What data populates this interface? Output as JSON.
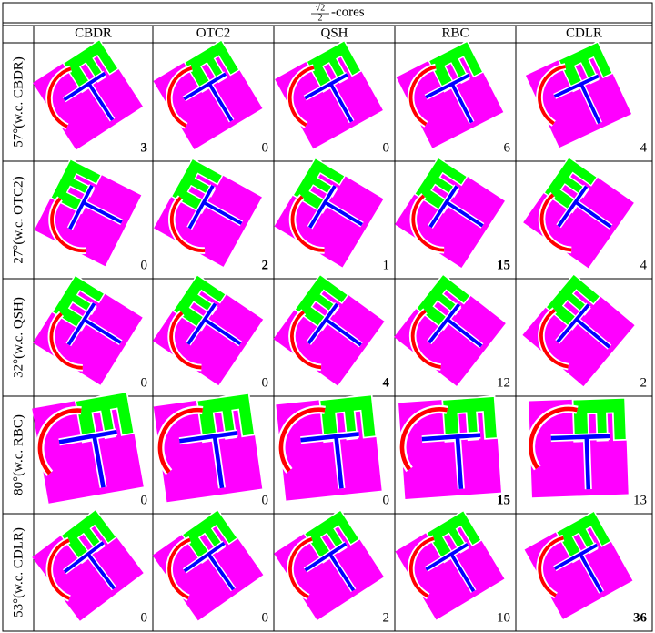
{
  "table": {
    "title": {
      "numerator": "√2",
      "denominator": "2",
      "suffix": "-cores"
    },
    "columns": [
      "CBDR",
      "OTC2",
      "QSH",
      "RBC",
      "CDLR"
    ],
    "rows": [
      {
        "label": "57°(w.c. CBDR)",
        "cells": [
          {
            "text": "3",
            "bold": true
          },
          {
            "text": "0"
          },
          {
            "text": "0"
          },
          {
            "text": "6"
          },
          {
            "text": "4"
          }
        ]
      },
      {
        "label": "27°(w.c. OTC2)",
        "cells": [
          {
            "text": "0"
          },
          {
            "text": "2",
            "bold": true
          },
          {
            "text": "1"
          },
          {
            "text": "15",
            "bold": true
          },
          {
            "text": "4"
          }
        ]
      },
      {
        "label": "32°(w.c. QSH)",
        "cells": [
          {
            "text": "0"
          },
          {
            "text": "0"
          },
          {
            "text": "4",
            "bold": true
          },
          {
            "text": "12"
          },
          {
            "text": "2"
          }
        ]
      },
      {
        "label": "80°(w.c. RBC)",
        "cells": [
          {
            "text": "0"
          },
          {
            "text": "0"
          },
          {
            "text": "0"
          },
          {
            "text": "15",
            "bold": true
          },
          {
            "text": "13"
          }
        ]
      },
      {
        "label": "53°(w.c. CDLR)",
        "cells": [
          {
            "text": "0"
          },
          {
            "text": "0"
          },
          {
            "text": "2"
          },
          {
            "text": "10"
          },
          {
            "text": "36",
            "bold": true
          }
        ]
      }
    ]
  }
}
